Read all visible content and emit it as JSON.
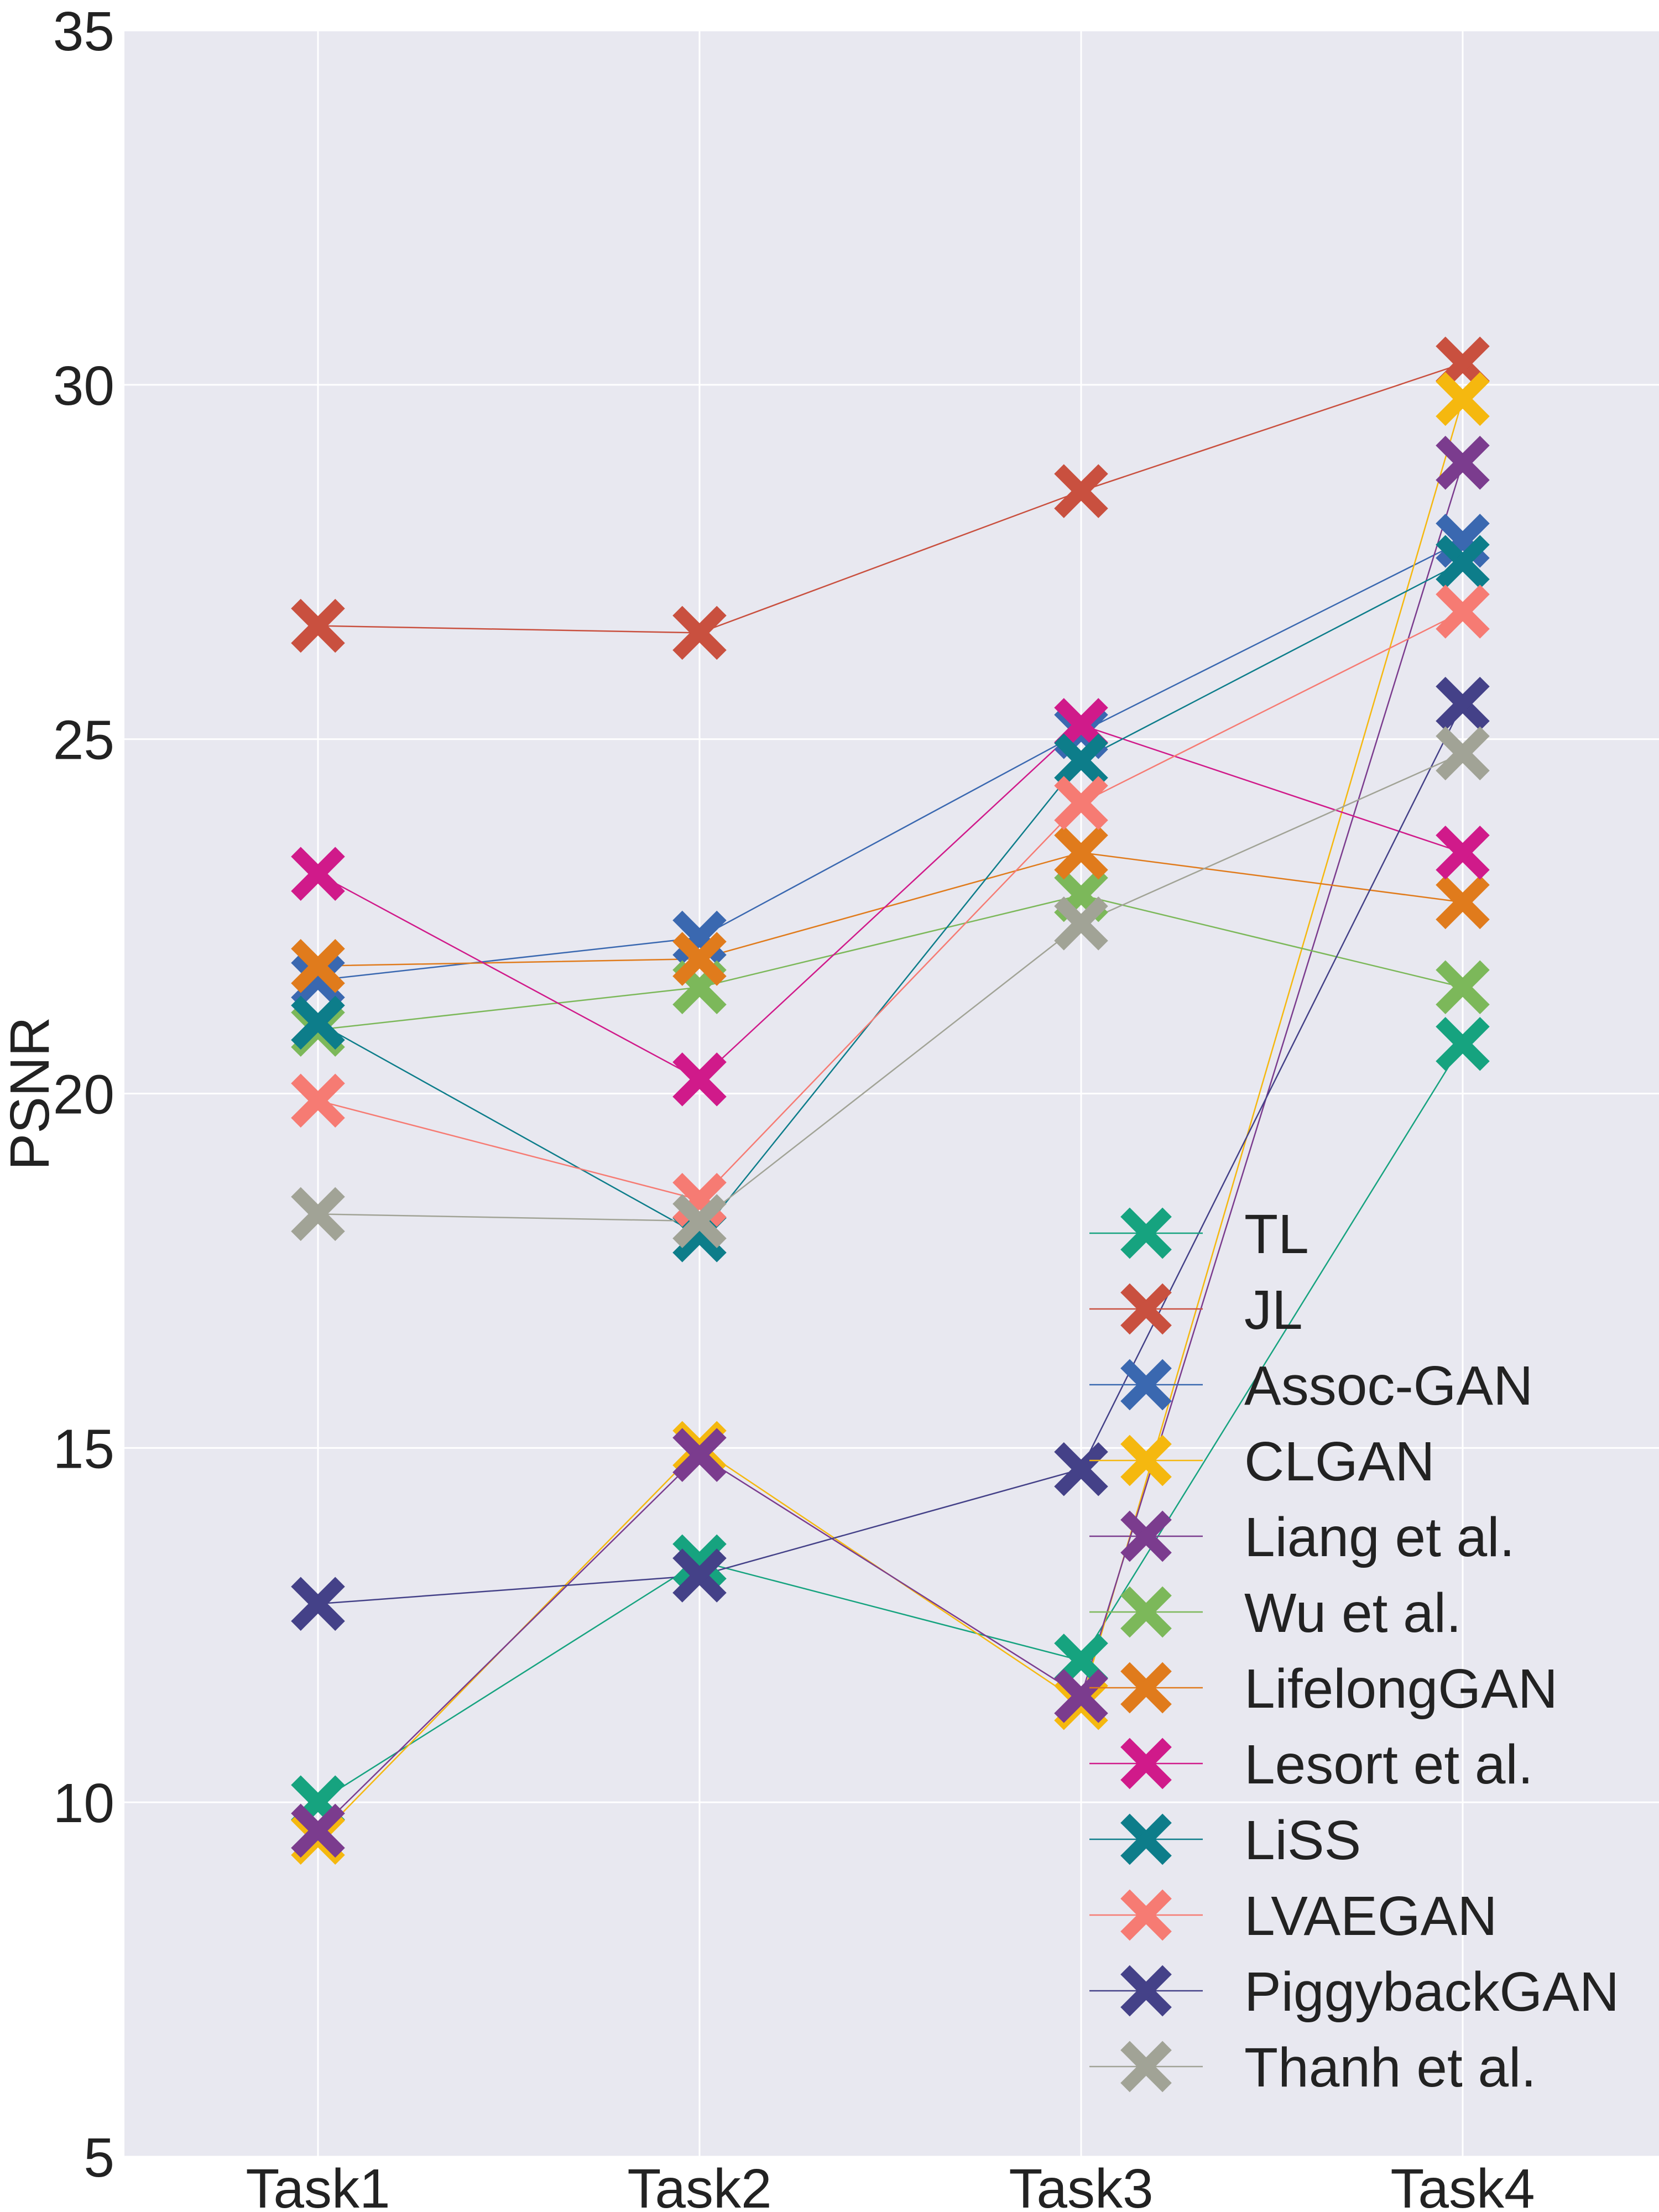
{
  "chart_data": {
    "type": "line",
    "title": "",
    "xlabel": "",
    "ylabel": "PSNR",
    "categories": [
      "Task1",
      "Task2",
      "Task3",
      "Task4"
    ],
    "ylim": [
      5,
      35
    ],
    "yticks": [
      5,
      10,
      15,
      20,
      25,
      30,
      35
    ],
    "grid": true,
    "legend_position": "lower-right",
    "marker": "X",
    "series": [
      {
        "name": "TL",
        "color": "#16a37f",
        "values": [
          10.0,
          13.4,
          12.0,
          20.7
        ]
      },
      {
        "name": "JL",
        "color": "#c9503f",
        "values": [
          26.6,
          26.5,
          28.5,
          30.3
        ]
      },
      {
        "name": "Assoc-GAN",
        "color": "#3a68b0",
        "values": [
          21.6,
          22.2,
          25.1,
          27.8
        ]
      },
      {
        "name": "CLGAN",
        "color": "#f5b80f",
        "values": [
          9.5,
          15.0,
          11.4,
          29.8
        ]
      },
      {
        "name": "Liang et al.",
        "color": "#7b3c8e",
        "values": [
          9.6,
          14.9,
          11.5,
          28.9
        ]
      },
      {
        "name": "Wu et al.",
        "color": "#7cb85a",
        "values": [
          20.9,
          21.5,
          22.8,
          21.5
        ]
      },
      {
        "name": "LifelongGAN",
        "color": "#e07b1c",
        "values": [
          21.8,
          21.9,
          23.4,
          22.7
        ]
      },
      {
        "name": "Lesort et al.",
        "color": "#d01a8a",
        "values": [
          23.1,
          20.2,
          25.2,
          23.4
        ]
      },
      {
        "name": "LiSS",
        "color": "#0d7d8a",
        "values": [
          21.0,
          18.0,
          24.7,
          27.5
        ]
      },
      {
        "name": "LVAEGAN",
        "color": "#f67b73",
        "values": [
          19.9,
          18.5,
          24.1,
          26.8
        ]
      },
      {
        "name": "PiggybackGAN",
        "color": "#444188",
        "values": [
          12.8,
          13.2,
          14.7,
          25.5
        ]
      },
      {
        "name": "Thanh et al.",
        "color": "#a1a396",
        "values": [
          18.3,
          18.2,
          22.4,
          24.8
        ]
      }
    ]
  }
}
